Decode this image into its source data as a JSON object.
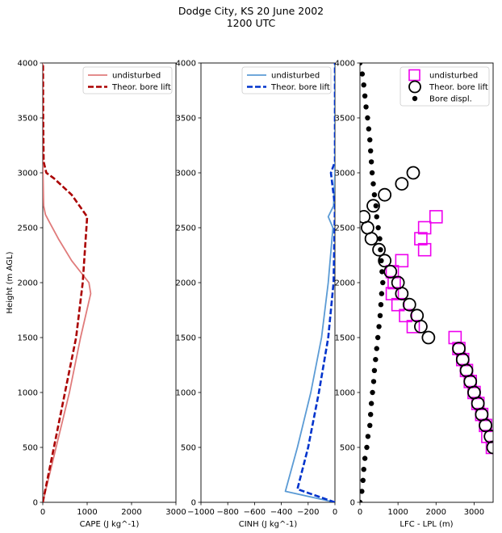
{
  "figure": {
    "title_line1": "Dodge City, KS 20 June 2002",
    "title_line2": "1200 UTC"
  },
  "chart_data": [
    {
      "type": "line",
      "xlabel": "CAPE (J kg^-1)",
      "ylabel": "Height (m AGL)",
      "xlim": [
        0,
        3000
      ],
      "ylim": [
        0,
        4000
      ],
      "xticks": [
        "0",
        "1000",
        "2000",
        "3000"
      ],
      "yticks": [
        "0",
        "500",
        "1000",
        "1500",
        "2000",
        "2500",
        "3000",
        "3500",
        "4000"
      ],
      "legend_position": "upper-right",
      "series": [
        {
          "name": "undisturbed",
          "style": "solid",
          "color": "#e07b7b",
          "x": [
            0,
            300,
            600,
            850,
            1080,
            1040,
            650,
            350,
            150,
            60,
            20,
            5,
            0,
            0
          ],
          "y": [
            0,
            500,
            1000,
            1500,
            1900,
            2000,
            2200,
            2400,
            2550,
            2620,
            2700,
            3000,
            3500,
            4000
          ]
        },
        {
          "name": "Theor. bore lift",
          "style": "dashed",
          "color": "#aa0000",
          "x": [
            0,
            250,
            500,
            750,
            900,
            1000,
            650,
            250,
            80,
            20,
            10,
            5
          ],
          "y": [
            0,
            500,
            1000,
            1500,
            2000,
            2600,
            2800,
            2950,
            3000,
            3100,
            3500,
            4000
          ]
        }
      ]
    },
    {
      "type": "line",
      "xlabel": "CINH (J kg^-1)",
      "ylabel": "",
      "xlim": [
        -1000,
        0
      ],
      "ylim": [
        0,
        4000
      ],
      "xticks": [
        "−1000",
        "−800",
        "−600",
        "−400",
        "−200",
        "0"
      ],
      "yticks": [
        "0",
        "500",
        "1000",
        "1500",
        "2000",
        "2500",
        "3000",
        "3500",
        "4000"
      ],
      "legend_position": "upper-right",
      "series": [
        {
          "name": "undisturbed",
          "style": "solid",
          "color": "#5b9bd5",
          "x": [
            0,
            -370,
            -280,
            -180,
            -100,
            -50,
            -15,
            -50,
            -10,
            0,
            0
          ],
          "y": [
            0,
            100,
            500,
            1000,
            1500,
            2000,
            2500,
            2600,
            2700,
            3000,
            4000
          ]
        },
        {
          "name": "Theor. bore lift",
          "style": "dashed",
          "color": "#0033cc",
          "x": [
            0,
            -280,
            -200,
            -120,
            -50,
            -10,
            0,
            -30,
            0,
            0
          ],
          "y": [
            0,
            120,
            500,
            1000,
            1500,
            2000,
            2700,
            3000,
            3100,
            4000
          ]
        }
      ]
    },
    {
      "type": "scatter",
      "xlabel": "LFC - LPL (m)",
      "ylabel": "",
      "xlim": [
        0,
        3500
      ],
      "ylim": [
        0,
        4000
      ],
      "xticks": [
        "0",
        "1000",
        "2000",
        "3000"
      ],
      "yticks": [
        "0",
        "500",
        "1000",
        "1500",
        "2000",
        "2500",
        "3000",
        "3500",
        "4000"
      ],
      "legend_position": "upper-right",
      "series": [
        {
          "name": "undisturbed",
          "marker": "square",
          "color": "#ee00ee",
          "points": [
            [
              3480,
              500
            ],
            [
              3360,
              600
            ],
            [
              3300,
              700
            ],
            [
              3200,
              800
            ],
            [
              3100,
              900
            ],
            [
              3000,
              1000
            ],
            [
              2900,
              1100
            ],
            [
              2800,
              1200
            ],
            [
              2700,
              1300
            ],
            [
              2600,
              1400
            ],
            [
              2500,
              1500
            ],
            [
              1400,
              1600
            ],
            [
              1200,
              1700
            ],
            [
              1000,
              1800
            ],
            [
              850,
              1900
            ],
            [
              900,
              2000
            ],
            [
              850,
              2100
            ],
            [
              1100,
              2200
            ],
            [
              1700,
              2300
            ],
            [
              1600,
              2400
            ],
            [
              1700,
              2500
            ],
            [
              2000,
              2600
            ]
          ]
        },
        {
          "name": "Theor. bore lift",
          "marker": "circle",
          "color": "#000000",
          "points": [
            [
              3500,
              500
            ],
            [
              3430,
              600
            ],
            [
              3300,
              700
            ],
            [
              3200,
              800
            ],
            [
              3100,
              900
            ],
            [
              3000,
              1000
            ],
            [
              2900,
              1100
            ],
            [
              2800,
              1200
            ],
            [
              2700,
              1300
            ],
            [
              2600,
              1400
            ],
            [
              1800,
              1500
            ],
            [
              1600,
              1600
            ],
            [
              1500,
              1700
            ],
            [
              1300,
              1800
            ],
            [
              1100,
              1900
            ],
            [
              1000,
              2000
            ],
            [
              800,
              2100
            ],
            [
              650,
              2200
            ],
            [
              500,
              2300
            ],
            [
              300,
              2400
            ],
            [
              200,
              2500
            ],
            [
              100,
              2600
            ],
            [
              350,
              2700
            ],
            [
              650,
              2800
            ],
            [
              1100,
              2900
            ],
            [
              1400,
              3000
            ]
          ]
        },
        {
          "name": "Bore displ.",
          "marker": "dot",
          "color": "#000000",
          "points": [
            [
              0,
              0
            ],
            [
              50,
              100
            ],
            [
              80,
              200
            ],
            [
              100,
              300
            ],
            [
              130,
              400
            ],
            [
              180,
              500
            ],
            [
              210,
              600
            ],
            [
              260,
              700
            ],
            [
              280,
              800
            ],
            [
              300,
              900
            ],
            [
              330,
              1000
            ],
            [
              360,
              1100
            ],
            [
              380,
              1200
            ],
            [
              410,
              1300
            ],
            [
              440,
              1400
            ],
            [
              470,
              1500
            ],
            [
              500,
              1600
            ],
            [
              530,
              1700
            ],
            [
              550,
              1800
            ],
            [
              570,
              1900
            ],
            [
              600,
              2000
            ],
            [
              580,
              2100
            ],
            [
              560,
              2200
            ],
            [
              540,
              2300
            ],
            [
              520,
              2400
            ],
            [
              480,
              2500
            ],
            [
              440,
              2600
            ],
            [
              420,
              2700
            ],
            [
              380,
              2800
            ],
            [
              350,
              2900
            ],
            [
              320,
              3000
            ],
            [
              300,
              3100
            ],
            [
              280,
              3200
            ],
            [
              260,
              3300
            ],
            [
              230,
              3400
            ],
            [
              200,
              3500
            ],
            [
              160,
              3600
            ],
            [
              130,
              3700
            ],
            [
              100,
              3800
            ],
            [
              60,
              3900
            ],
            [
              0,
              4000
            ]
          ]
        }
      ]
    }
  ]
}
